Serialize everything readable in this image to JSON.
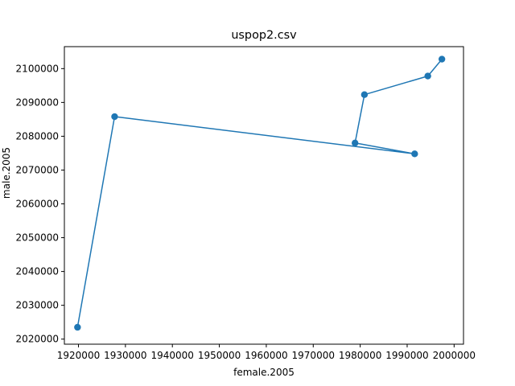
{
  "chart_data": {
    "type": "line",
    "title": "uspop2.csv",
    "xlabel": "female.2005",
    "ylabel": "male.2005",
    "xlim": [
      1917000,
      2002000
    ],
    "ylim": [
      2018500,
      2106500
    ],
    "xticks": [
      1920000,
      1930000,
      1940000,
      1950000,
      1960000,
      1970000,
      1980000,
      1990000,
      2000000
    ],
    "yticks": [
      2020000,
      2030000,
      2040000,
      2050000,
      2060000,
      2070000,
      2080000,
      2090000,
      2100000
    ],
    "xtick_labels": [
      "1920000",
      "1930000",
      "1940000",
      "1950000",
      "1960000",
      "1970000",
      "1980000",
      "1990000",
      "2000000"
    ],
    "ytick_labels": [
      "2020000",
      "2030000",
      "2040000",
      "2050000",
      "2060000",
      "2070000",
      "2080000",
      "2090000",
      "2100000"
    ],
    "series": [
      {
        "color": "#1f77b4",
        "marker": "circle",
        "points": [
          {
            "x": 1919800,
            "y": 2023500
          },
          {
            "x": 1927700,
            "y": 2085800
          },
          {
            "x": 1991600,
            "y": 2074800
          },
          {
            "x": 1978900,
            "y": 2078000
          },
          {
            "x": 1980900,
            "y": 2092300
          },
          {
            "x": 1994400,
            "y": 2097800
          },
          {
            "x": 1997400,
            "y": 2102800
          }
        ]
      }
    ],
    "grid": false,
    "legend": "none"
  }
}
